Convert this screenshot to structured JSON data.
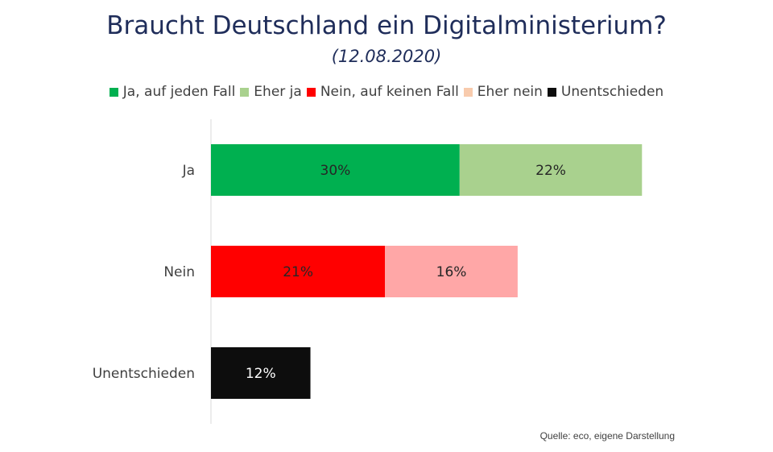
{
  "chart_data": {
    "type": "bar",
    "orientation": "horizontal",
    "stacked": true,
    "title": "Braucht Deutschland ein Digitalministerium?",
    "subtitle": "(12.08.2020)",
    "categories": [
      "Ja",
      "Nein",
      "Unentschieden"
    ],
    "segments": [
      [
        {
          "series": "Ja, auf jeden Fall",
          "value": 30,
          "label": "30%",
          "color": "#00b050"
        },
        {
          "series": "Eher ja",
          "value": 22,
          "label": "22%",
          "color": "#a9d18e"
        }
      ],
      [
        {
          "series": "Nein, auf keinen Fall",
          "value": 21,
          "label": "21%",
          "color": "#ff0000"
        },
        {
          "series": "Eher nein",
          "value": 16,
          "label": "16%",
          "color": "#ffa7a7"
        }
      ],
      [
        {
          "series": "Unentschieden",
          "value": 12,
          "label": "12%",
          "color": "#0d0d0d"
        }
      ]
    ],
    "legend": {
      "position": "top",
      "items": [
        {
          "name": "Ja, auf jeden Fall",
          "color": "#00b050"
        },
        {
          "name": "Eher ja",
          "color": "#a9d18e"
        },
        {
          "name": "Nein, auf keinen Fall",
          "color": "#ff0000"
        },
        {
          "name": "Eher nein",
          "color": "#f8cbad"
        },
        {
          "name": "Unentschieden",
          "color": "#0d0d0d"
        }
      ]
    },
    "xlim": [
      0,
      68
    ],
    "grid": false,
    "source": "Quelle: eco, eigene Darstellung"
  }
}
